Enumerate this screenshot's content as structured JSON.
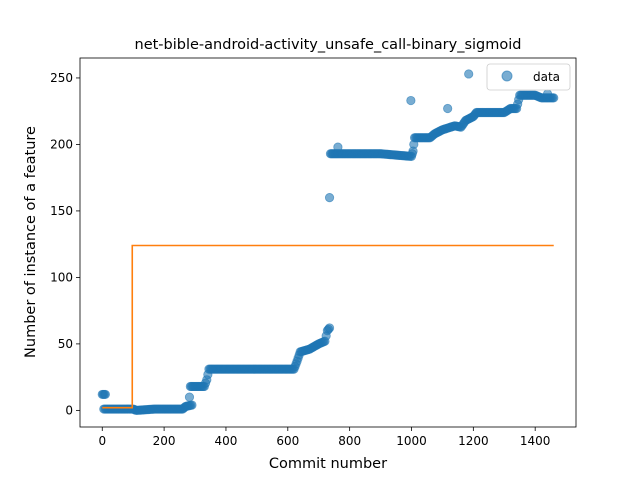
{
  "chart_data": {
    "type": "scatter",
    "title": "net-bible-android-activity_unsafe_call-binary_sigmoid",
    "xlabel": "Commit number",
    "ylabel": "Number of instance of a feature",
    "xlim": [
      -72,
      1532
    ],
    "ylim": [
      -12.5,
      265
    ],
    "xticks": [
      0,
      200,
      400,
      600,
      800,
      1000,
      1200,
      1400
    ],
    "yticks": [
      0,
      50,
      100,
      150,
      200,
      250
    ],
    "legend": {
      "placement": "top-right",
      "entries": [
        "data"
      ]
    },
    "grid": false,
    "colors": {
      "data": "#1f77b4",
      "fit": "#ff7f0e"
    },
    "series": [
      {
        "name": "data",
        "segments": [
          [
            [
              0,
              12
            ],
            [
              10,
              12
            ]
          ],
          [
            [
              5,
              1
            ],
            [
              100,
              1
            ],
            [
              110,
              0
            ],
            [
              170,
              1
            ],
            [
              260,
              1
            ],
            [
              270,
              3
            ],
            [
              290,
              4
            ]
          ],
          [
            [
              282,
              10
            ]
          ],
          [
            [
              285,
              18
            ],
            [
              330,
              18
            ],
            [
              338,
              23
            ],
            [
              345,
              31
            ],
            [
              620,
              31
            ],
            [
              630,
              37
            ],
            [
              640,
              44
            ],
            [
              670,
              46
            ],
            [
              700,
              50
            ],
            [
              720,
              52
            ],
            [
              728,
              60
            ],
            [
              735,
              62
            ]
          ],
          [
            [
              735,
              160
            ]
          ],
          [
            [
              738,
              193
            ],
            [
              760,
              193
            ],
            [
              900,
              193
            ],
            [
              1000,
              191
            ],
            [
              1005,
              195
            ],
            [
              1010,
              205
            ],
            [
              1060,
              205
            ],
            [
              1075,
              208
            ],
            [
              1100,
              211
            ],
            [
              1140,
              214
            ],
            [
              1160,
              213
            ],
            [
              1175,
              218
            ],
            [
              1200,
              221
            ],
            [
              1210,
              224
            ],
            [
              1300,
              224
            ],
            [
              1320,
              227
            ],
            [
              1340,
              227
            ],
            [
              1350,
              237
            ],
            [
              1400,
              237
            ],
            [
              1420,
              235
            ],
            [
              1460,
              235
            ]
          ],
          [
            [
              762,
              198
            ]
          ],
          [
            [
              998,
              233
            ]
          ],
          [
            [
              1117,
              227
            ]
          ],
          [
            [
              1185,
              253
            ]
          ],
          [
            [
              1440,
              238
            ]
          ]
        ]
      },
      {
        "name": "",
        "type": "line",
        "segments": [
          [
            [
              0,
              2
            ],
            [
              97,
              2
            ],
            [
              97,
              124
            ],
            [
              1460,
              124
            ]
          ]
        ]
      }
    ]
  }
}
